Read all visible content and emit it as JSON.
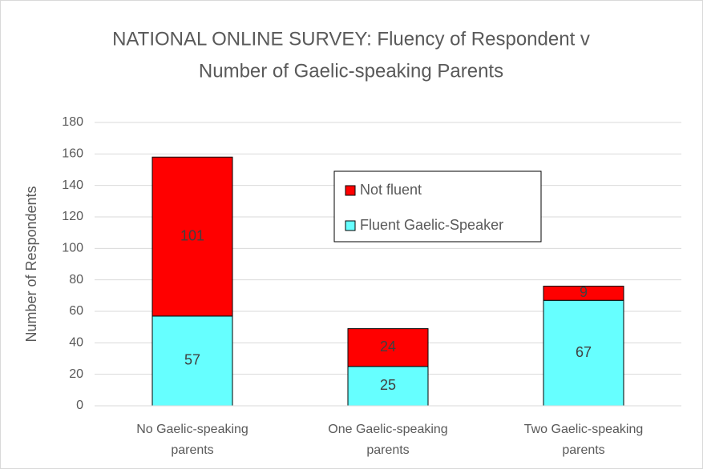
{
  "chart_data": {
    "type": "stacked_bar",
    "title": [
      "NATIONAL ONLINE SURVEY: Fluency of Respondent v",
      "Number of Gaelic-speaking Parents"
    ],
    "y_label": "Number of Respondents",
    "categories": [
      "No Gaelic-speaking parents",
      "One Gaelic-speaking parents",
      "Two Gaelic-speaking parents"
    ],
    "series": [
      {
        "name": "Fluent Gaelic-Speaker",
        "color": "#66ffff",
        "values": [
          57,
          25,
          67
        ]
      },
      {
        "name": "Not fluent",
        "color": "#ff0000",
        "values": [
          101,
          24,
          9
        ]
      }
    ],
    "ylim": [
      0,
      180
    ],
    "yticks": [
      0,
      20,
      40,
      60,
      80,
      100,
      120,
      140,
      160,
      180
    ],
    "grid": true,
    "legend": "center"
  }
}
